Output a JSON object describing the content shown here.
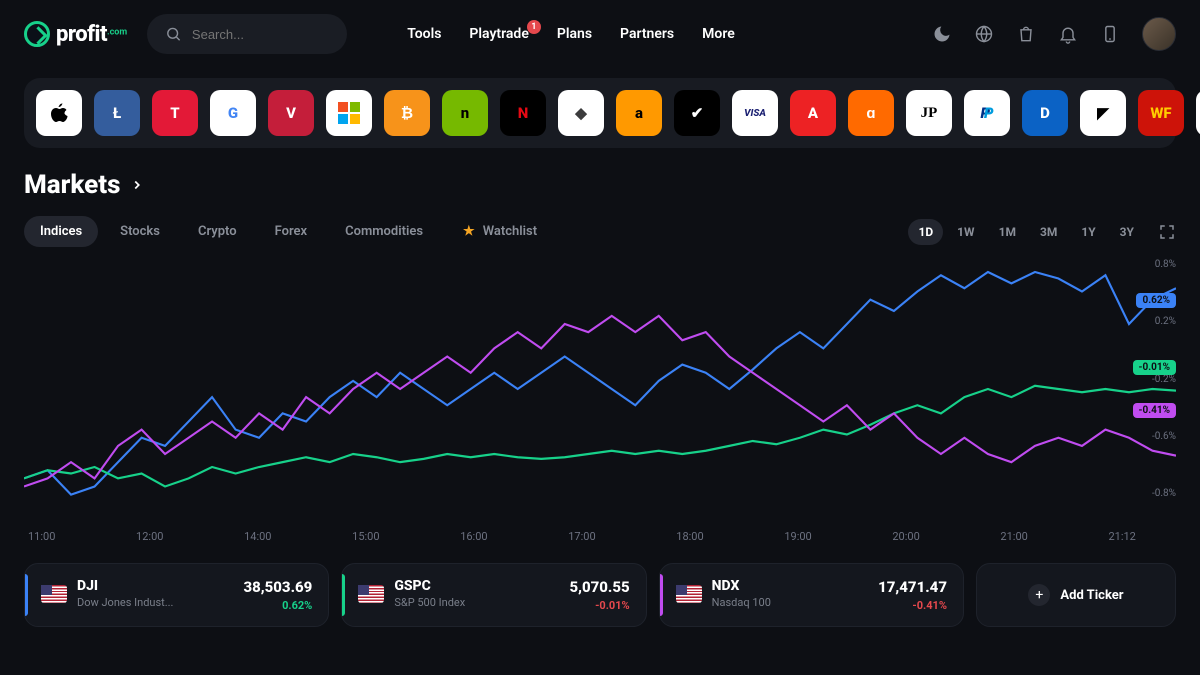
{
  "logo": {
    "text": "profit",
    "suffix": ".com"
  },
  "search": {
    "placeholder": "Search..."
  },
  "nav": [
    {
      "label": "Tools",
      "badge": null
    },
    {
      "label": "Playtrade",
      "badge": "1"
    },
    {
      "label": "Plans",
      "badge": null
    },
    {
      "label": "Partners",
      "badge": null
    },
    {
      "label": "More",
      "badge": null
    }
  ],
  "page_title": "Markets",
  "category_tabs": [
    {
      "label": "Indices",
      "active": true
    },
    {
      "label": "Stocks",
      "active": false
    },
    {
      "label": "Crypto",
      "active": false
    },
    {
      "label": "Forex",
      "active": false
    },
    {
      "label": "Commodities",
      "active": false
    }
  ],
  "watchlist_label": "Watchlist",
  "range_tabs": [
    {
      "label": "1D",
      "active": true
    },
    {
      "label": "1W",
      "active": false
    },
    {
      "label": "1M",
      "active": false
    },
    {
      "label": "3M",
      "active": false
    },
    {
      "label": "1Y",
      "active": false
    },
    {
      "label": "3Y",
      "active": false
    }
  ],
  "brand_tiles": [
    {
      "name": "apple",
      "bg": "#ffffff",
      "fg": "#000000",
      "text": ""
    },
    {
      "name": "litecoin",
      "bg": "#345d9d",
      "fg": "#ffffff",
      "text": "Ł"
    },
    {
      "name": "tesla",
      "bg": "#e31937",
      "fg": "#ffffff",
      "text": "T"
    },
    {
      "name": "google",
      "bg": "#ffffff",
      "fg": "#4285f4",
      "text": "G"
    },
    {
      "name": "vanguard",
      "bg": "#c41e3a",
      "fg": "#ffffff",
      "text": "V"
    },
    {
      "name": "microsoft",
      "bg": "#ffffff",
      "fg": "#000000",
      "text": ""
    },
    {
      "name": "bitcoin",
      "bg": "#f7931a",
      "fg": "#ffffff",
      "text": "₿"
    },
    {
      "name": "nvidia",
      "bg": "#76b900",
      "fg": "#000000",
      "text": "n"
    },
    {
      "name": "netflix",
      "bg": "#000000",
      "fg": "#e50914",
      "text": "N"
    },
    {
      "name": "ethereum",
      "bg": "#ffffff",
      "fg": "#3c3c3d",
      "text": "◆"
    },
    {
      "name": "amazon",
      "bg": "#ff9900",
      "fg": "#000000",
      "text": "a"
    },
    {
      "name": "nike",
      "bg": "#000000",
      "fg": "#ffffff",
      "text": "✔"
    },
    {
      "name": "visa",
      "bg": "#ffffff",
      "fg": "#1a1f71",
      "text": "VISA"
    },
    {
      "name": "adobe",
      "bg": "#ed2224",
      "fg": "#ffffff",
      "text": "A"
    },
    {
      "name": "alibaba",
      "bg": "#ff6a00",
      "fg": "#ffffff",
      "text": "ɑ"
    },
    {
      "name": "jpmorgan",
      "bg": "#ffffff",
      "fg": "#000000",
      "text": "JP"
    },
    {
      "name": "paypal",
      "bg": "#ffffff",
      "fg": "#003087",
      "text": "P"
    },
    {
      "name": "disney",
      "bg": "#0b62c5",
      "fg": "#ffffff",
      "text": "D"
    },
    {
      "name": "amd",
      "bg": "#ffffff",
      "fg": "#000000",
      "text": "◤"
    },
    {
      "name": "wellsfargo",
      "bg": "#cd1309",
      "fg": "#ffcd00",
      "text": "WF"
    },
    {
      "name": "mastercard",
      "bg": "#ffffff",
      "fg": "#eb001b",
      "text": ""
    }
  ],
  "chart": {
    "type": "line",
    "ylim": [
      -0.8,
      0.8
    ],
    "y_ticks": [
      "0.8%",
      "0.2%",
      "-0.2%",
      "-0.6%",
      "-0.8%"
    ],
    "x_ticks": [
      "11:00",
      "12:00",
      "14:00",
      "15:00",
      "16:00",
      "17:00",
      "18:00",
      "19:00",
      "20:00",
      "21:00",
      "21:12"
    ],
    "series": [
      {
        "id": "dji",
        "color": "#3b82f6",
        "end_label": "0.62%",
        "end_y_pct": 14,
        "points": [
          -0.55,
          -0.5,
          -0.65,
          -0.6,
          -0.45,
          -0.3,
          -0.35,
          -0.2,
          -0.05,
          -0.25,
          -0.3,
          -0.15,
          -0.2,
          -0.05,
          0.05,
          -0.05,
          0.1,
          0.0,
          -0.1,
          0.0,
          0.1,
          0.0,
          0.1,
          0.2,
          0.1,
          0.0,
          -0.1,
          0.05,
          0.15,
          0.1,
          0.0,
          0.12,
          0.25,
          0.35,
          0.25,
          0.4,
          0.55,
          0.48,
          0.6,
          0.7,
          0.62,
          0.72,
          0.65,
          0.72,
          0.68,
          0.6,
          0.7,
          0.4,
          0.55,
          0.62
        ]
      },
      {
        "id": "gspc",
        "color": "#17d18a",
        "end_label": "-0.01%",
        "end_y_pct": 42,
        "points": [
          -0.55,
          -0.5,
          -0.52,
          -0.48,
          -0.55,
          -0.52,
          -0.6,
          -0.55,
          -0.48,
          -0.52,
          -0.48,
          -0.45,
          -0.42,
          -0.45,
          -0.4,
          -0.42,
          -0.45,
          -0.43,
          -0.4,
          -0.42,
          -0.4,
          -0.42,
          -0.43,
          -0.42,
          -0.4,
          -0.38,
          -0.4,
          -0.38,
          -0.4,
          -0.38,
          -0.35,
          -0.32,
          -0.34,
          -0.3,
          -0.25,
          -0.28,
          -0.22,
          -0.15,
          -0.1,
          -0.15,
          -0.05,
          0.0,
          -0.05,
          0.02,
          0.0,
          -0.02,
          0.0,
          -0.02,
          0.0,
          -0.01
        ]
      },
      {
        "id": "ndx",
        "color": "#c04cf0",
        "end_label": "-0.41%",
        "end_y_pct": 60,
        "points": [
          -0.6,
          -0.55,
          -0.45,
          -0.55,
          -0.35,
          -0.25,
          -0.4,
          -0.3,
          -0.2,
          -0.3,
          -0.15,
          -0.25,
          -0.05,
          -0.15,
          0.0,
          0.1,
          0.0,
          0.1,
          0.2,
          0.1,
          0.25,
          0.35,
          0.25,
          0.4,
          0.35,
          0.45,
          0.35,
          0.45,
          0.3,
          0.35,
          0.2,
          0.1,
          0.0,
          -0.1,
          -0.2,
          -0.1,
          -0.25,
          -0.15,
          -0.3,
          -0.4,
          -0.3,
          -0.4,
          -0.45,
          -0.35,
          -0.3,
          -0.35,
          -0.25,
          -0.3,
          -0.38,
          -0.41
        ]
      }
    ]
  },
  "tickers": [
    {
      "accent": "#3b82f6",
      "symbol": "DJI",
      "name": "Dow Jones Indust...",
      "price": "38,503.69",
      "change": "0.62%",
      "change_color": "#17d18a"
    },
    {
      "accent": "#17d18a",
      "symbol": "GSPC",
      "name": "S&P 500 Index",
      "price": "5,070.55",
      "change": "-0.01%",
      "change_color": "#e5484d"
    },
    {
      "accent": "#c04cf0",
      "symbol": "NDX",
      "name": "Nasdaq 100",
      "price": "17,471.47",
      "change": "-0.41%",
      "change_color": "#e5484d"
    }
  ],
  "add_ticker_label": "Add Ticker",
  "colors": {
    "bg": "#0d0f14",
    "panel": "#181b22",
    "card": "#14171e",
    "muted": "#8a8f99"
  }
}
